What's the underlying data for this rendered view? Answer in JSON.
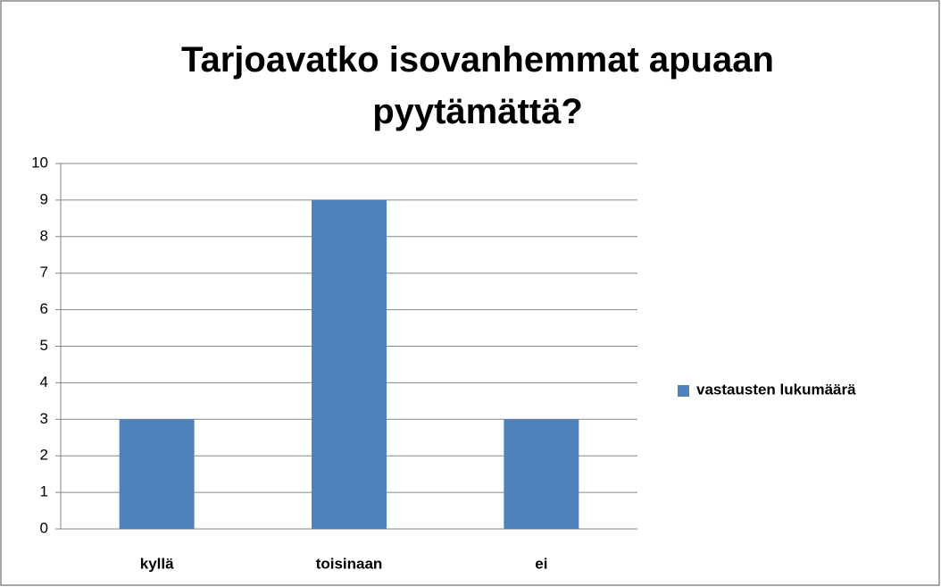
{
  "chart_data": {
    "type": "bar",
    "title": "Tarjoavatko isovanhemmat apuaan pyytämättä?",
    "categories": [
      "kyllä",
      "toisinaan",
      "ei"
    ],
    "series": [
      {
        "name": "vastausten lukumäärä",
        "color": "#4f81bd",
        "values": [
          3,
          9,
          3
        ]
      }
    ],
    "ylim": [
      0,
      10
    ],
    "yticks": [
      0,
      1,
      2,
      3,
      4,
      5,
      6,
      7,
      8,
      9,
      10
    ],
    "grid": true,
    "legend": "right"
  }
}
